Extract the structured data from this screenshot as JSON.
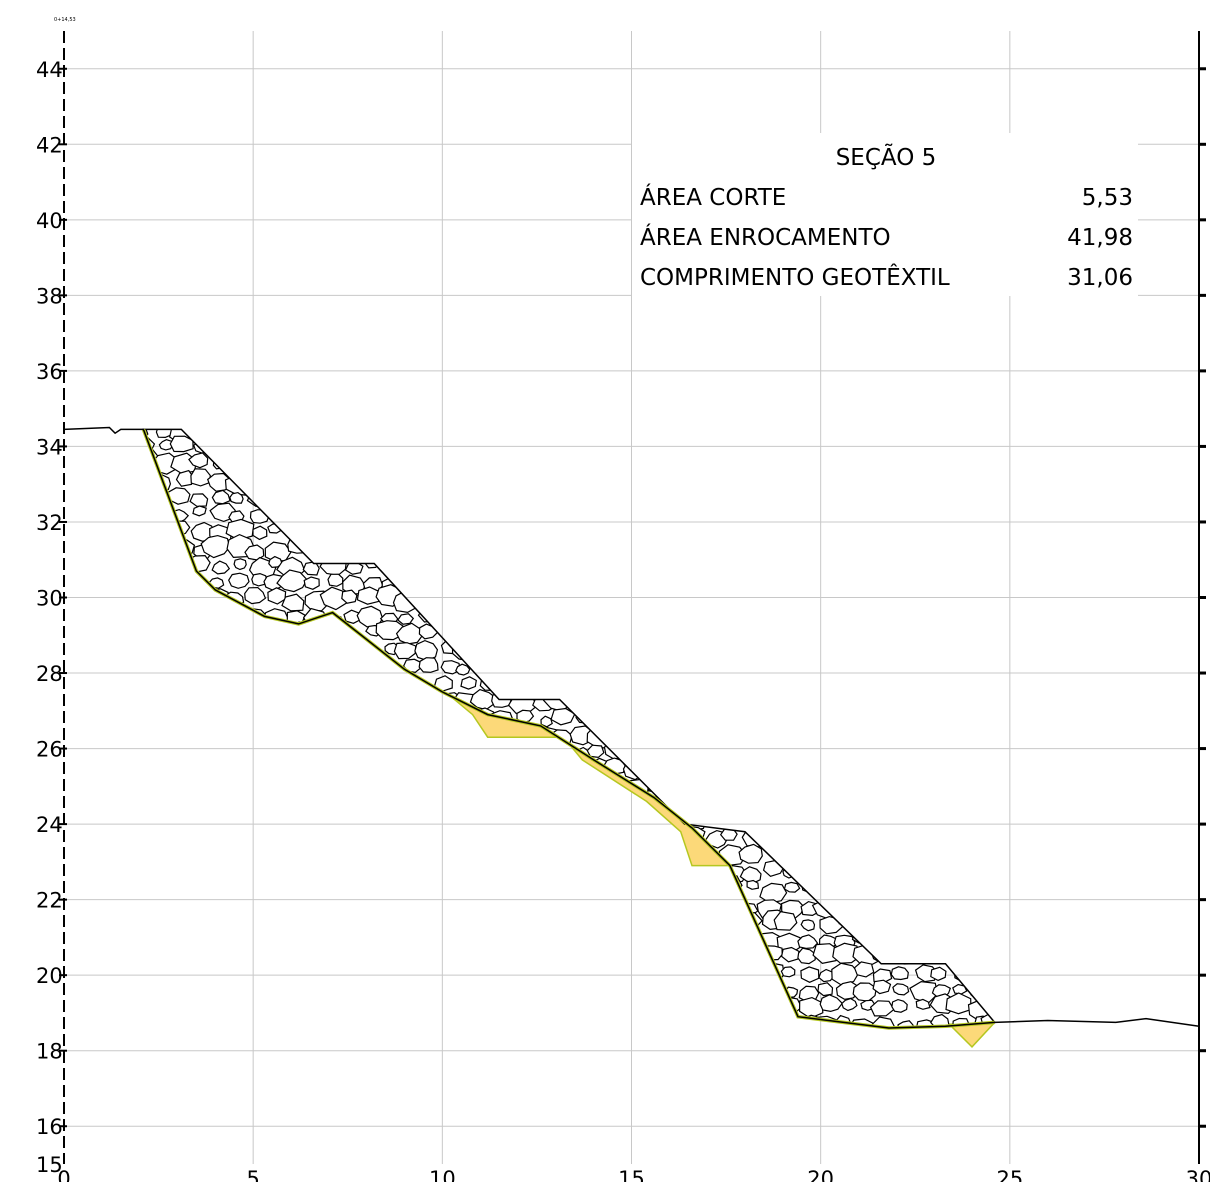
{
  "chart_data": {
    "type": "cross-section",
    "top_left_marker": "0+14,53",
    "xlim": [
      0,
      30
    ],
    "ylim": [
      15,
      45
    ],
    "x_ticks": [
      0,
      5,
      10,
      15,
      20,
      25,
      30
    ],
    "y_ticks": [
      15,
      16,
      18,
      20,
      22,
      24,
      26,
      28,
      30,
      32,
      34,
      36,
      38,
      40,
      42,
      44
    ],
    "grid": true,
    "terrain_line": [
      [
        0,
        34.45
      ],
      [
        1.2,
        34.5
      ],
      [
        1.35,
        34.35
      ],
      [
        1.5,
        34.45
      ],
      [
        2.1,
        34.45
      ],
      [
        3.5,
        30.7
      ],
      [
        4,
        30.2
      ],
      [
        5.3,
        29.5
      ],
      [
        6.2,
        29.3
      ],
      [
        7.1,
        29.6
      ],
      [
        9,
        28.1
      ],
      [
        10,
        27.5
      ],
      [
        11.2,
        26.9
      ],
      [
        12.6,
        26.6
      ],
      [
        14,
        25.7
      ],
      [
        15.6,
        24.7
      ],
      [
        16.6,
        23.9
      ],
      [
        17.6,
        22.9
      ],
      [
        19.4,
        18.9
      ],
      [
        21.8,
        18.6
      ],
      [
        23.3,
        18.65
      ],
      [
        24.6,
        18.75
      ],
      [
        26,
        18.8
      ],
      [
        27.8,
        18.75
      ],
      [
        28.6,
        18.85
      ],
      [
        30,
        18.65
      ]
    ],
    "geotextile_line": [
      [
        2.1,
        34.45
      ],
      [
        3.5,
        30.7
      ],
      [
        4,
        30.2
      ],
      [
        5.3,
        29.5
      ],
      [
        6.2,
        29.3
      ],
      [
        7.1,
        29.6
      ],
      [
        9,
        28.1
      ],
      [
        10,
        27.5
      ],
      [
        11.2,
        26.9
      ],
      [
        12.6,
        26.6
      ],
      [
        14,
        25.7
      ],
      [
        15.6,
        24.7
      ],
      [
        16.6,
        23.9
      ],
      [
        17.6,
        22.9
      ],
      [
        19.4,
        18.9
      ],
      [
        21.8,
        18.6
      ],
      [
        23.3,
        18.65
      ],
      [
        24.6,
        18.75
      ]
    ],
    "rockfill_polygon": [
      [
        2.1,
        34.45
      ],
      [
        3.1,
        34.45
      ],
      [
        6.6,
        30.9
      ],
      [
        8.2,
        30.9
      ],
      [
        11.5,
        27.3
      ],
      [
        13.1,
        27.3
      ],
      [
        16.4,
        24.0
      ],
      [
        18,
        23.8
      ],
      [
        21.6,
        20.3
      ],
      [
        23.3,
        20.3
      ],
      [
        24.6,
        18.75
      ],
      [
        23.3,
        18.65
      ],
      [
        21.8,
        18.6
      ],
      [
        19.4,
        18.9
      ],
      [
        17.6,
        22.9
      ],
      [
        16.6,
        23.9
      ],
      [
        15.6,
        24.7
      ],
      [
        14,
        25.7
      ],
      [
        12.6,
        26.6
      ],
      [
        11.2,
        26.9
      ],
      [
        10,
        27.5
      ],
      [
        9,
        28.1
      ],
      [
        7.1,
        29.6
      ],
      [
        6.2,
        29.3
      ],
      [
        5.3,
        29.5
      ],
      [
        4,
        30.2
      ],
      [
        3.5,
        30.7
      ]
    ],
    "cut_polygons": [
      [
        [
          10.2,
          27.4
        ],
        [
          11.2,
          26.9
        ],
        [
          12.6,
          26.6
        ],
        [
          14,
          25.7
        ],
        [
          15.6,
          24.7
        ],
        [
          16.6,
          23.9
        ],
        [
          17.6,
          22.9
        ],
        [
          17.1,
          22.9
        ],
        [
          16.6,
          22.9
        ],
        [
          16.3,
          23.8
        ],
        [
          15.4,
          24.6
        ],
        [
          13.7,
          25.7
        ],
        [
          13.2,
          26.3
        ],
        [
          12.2,
          26.3
        ],
        [
          11.2,
          26.3
        ],
        [
          10.8,
          26.9
        ]
      ],
      [
        [
          23.4,
          18.7
        ],
        [
          24.6,
          18.75
        ],
        [
          24,
          18.1
        ]
      ]
    ],
    "colors": {
      "grid": "#c8c8c8",
      "terrain": "#000000",
      "geotextile": "#b5c720",
      "cut_fill": "#fcd979",
      "rock_stroke": "#000000"
    }
  },
  "info_box": {
    "title": "SEÇÃO 5",
    "rows": [
      {
        "label": "ÁREA CORTE",
        "value": "5,53"
      },
      {
        "label": "ÁREA ENROCAMENTO",
        "value": "41,98"
      },
      {
        "label": "COMPRIMENTO GEOTÊXTIL",
        "value": "31,06"
      }
    ]
  }
}
